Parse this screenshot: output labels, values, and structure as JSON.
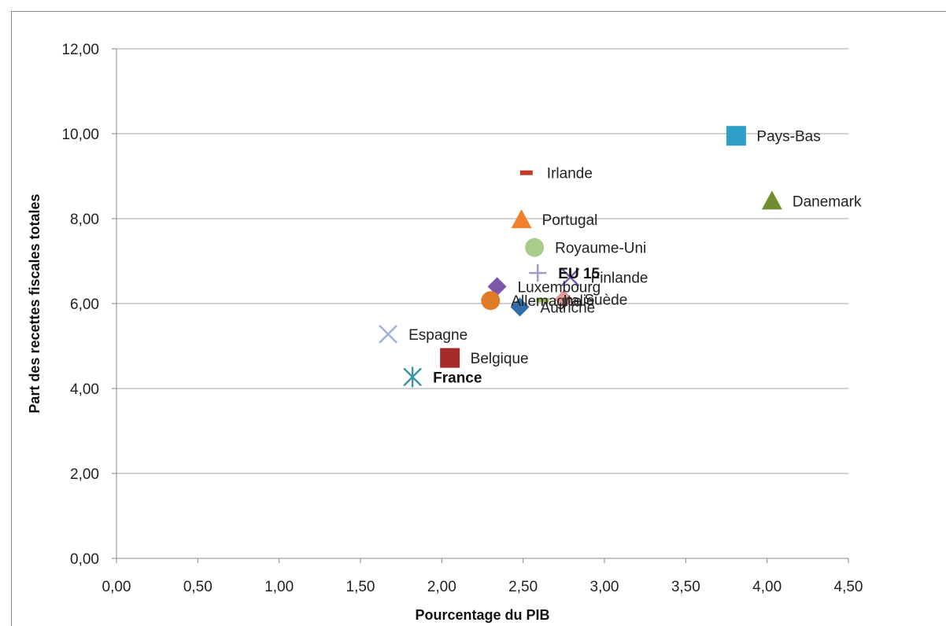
{
  "chart_data": {
    "type": "scatter",
    "xlabel": "Pourcentage du PIB",
    "ylabel": "Part des recettes fiscales totales",
    "xlim": [
      0,
      4.5
    ],
    "ylim": [
      0,
      12
    ],
    "xticks": [
      "0,00",
      "0,50",
      "1,00",
      "1,50",
      "2,00",
      "2,50",
      "3,00",
      "3,50",
      "4,00",
      "4,50"
    ],
    "yticks": [
      "0,00",
      "2,00",
      "4,00",
      "6,00",
      "8,00",
      "10,00",
      "12,00"
    ],
    "grid": "horizontal",
    "points": [
      {
        "label": "Pays-Bas",
        "x": 3.81,
        "y": 9.95,
        "marker": "square",
        "color": "#2e9fc8",
        "bold": false
      },
      {
        "label": "Danemark",
        "x": 4.03,
        "y": 8.42,
        "marker": "triangle",
        "color": "#6e8f31",
        "bold": false
      },
      {
        "label": "Irlande",
        "x": 2.52,
        "y": 9.08,
        "marker": "dash",
        "color": "#c0392b",
        "bold": false
      },
      {
        "label": "Portugal",
        "x": 2.49,
        "y": 7.98,
        "marker": "triangle",
        "color": "#f0812a",
        "bold": false
      },
      {
        "label": "Royaume-Uni",
        "x": 2.57,
        "y": 7.32,
        "marker": "circle",
        "color": "#a9cc8c",
        "bold": false
      },
      {
        "label": "EU 15",
        "x": 2.59,
        "y": 6.72,
        "marker": "plus",
        "color": "#a79ac9",
        "bold": true
      },
      {
        "label": "Finlande",
        "x": 2.79,
        "y": 6.62,
        "marker": "x",
        "color": "#7b5ea7",
        "bold": false
      },
      {
        "label": "Luxembourg",
        "x": 2.34,
        "y": 6.4,
        "marker": "diamond",
        "color": "#7e57a8",
        "bold": false
      },
      {
        "label": "Allemagne",
        "x": 2.3,
        "y": 6.07,
        "marker": "circle",
        "color": "#e07b28",
        "bold": false
      },
      {
        "label": "Italie",
        "x": 2.62,
        "y": 6.08,
        "marker": "dash",
        "color": "#9bbb59",
        "bold": false
      },
      {
        "label": "Suède",
        "x": 2.75,
        "y": 6.1,
        "marker": "diamond",
        "color": "#e59b9b",
        "bold": false
      },
      {
        "label": "Autriche",
        "x": 2.48,
        "y": 5.92,
        "marker": "diamond",
        "color": "#2f6ea9",
        "bold": false
      },
      {
        "label": "Espagne",
        "x": 1.67,
        "y": 5.28,
        "marker": "x",
        "color": "#9fb3d8",
        "bold": false
      },
      {
        "label": "Belgique",
        "x": 2.05,
        "y": 4.72,
        "marker": "square",
        "color": "#a52a2a",
        "bold": false
      },
      {
        "label": "France",
        "x": 1.82,
        "y": 4.27,
        "marker": "star",
        "color": "#3b94a8",
        "bold": true
      }
    ]
  }
}
